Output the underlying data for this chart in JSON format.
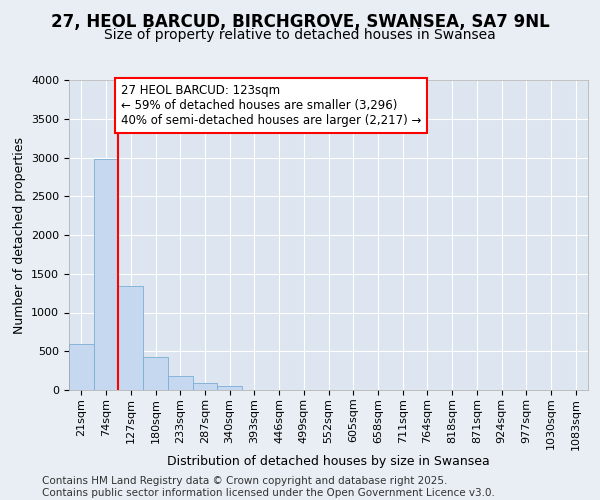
{
  "title1": "27, HEOL BARCUD, BIRCHGROVE, SWANSEA, SA7 9NL",
  "title2": "Size of property relative to detached houses in Swansea",
  "xlabel": "Distribution of detached houses by size in Swansea",
  "ylabel": "Number of detached properties",
  "categories": [
    "21sqm",
    "74sqm",
    "127sqm",
    "180sqm",
    "233sqm",
    "287sqm",
    "340sqm",
    "393sqm",
    "446sqm",
    "499sqm",
    "552sqm",
    "605sqm",
    "658sqm",
    "711sqm",
    "764sqm",
    "818sqm",
    "871sqm",
    "924sqm",
    "977sqm",
    "1030sqm",
    "1083sqm"
  ],
  "values": [
    600,
    2980,
    1340,
    430,
    175,
    85,
    50,
    0,
    0,
    0,
    0,
    0,
    0,
    0,
    0,
    0,
    0,
    0,
    0,
    0,
    0
  ],
  "bar_color": "#c5d8ef",
  "bar_edge_color": "#7aadd4",
  "vline_color": "red",
  "vline_pos": 1.5,
  "annotation_text": "27 HEOL BARCUD: 123sqm\n← 59% of detached houses are smaller (3,296)\n40% of semi-detached houses are larger (2,217) →",
  "annotation_box_color": "white",
  "annotation_box_edge": "red",
  "ylim": [
    0,
    4000
  ],
  "yticks": [
    0,
    500,
    1000,
    1500,
    2000,
    2500,
    3000,
    3500,
    4000
  ],
  "background_color": "#e8eef4",
  "plot_background": "#dde6f0",
  "footer": "Contains HM Land Registry data © Crown copyright and database right 2025.\nContains public sector information licensed under the Open Government Licence v3.0.",
  "title_fontsize": 12,
  "subtitle_fontsize": 10,
  "axis_label_fontsize": 9,
  "tick_fontsize": 8,
  "footer_fontsize": 7.5,
  "annot_fontsize": 8.5
}
